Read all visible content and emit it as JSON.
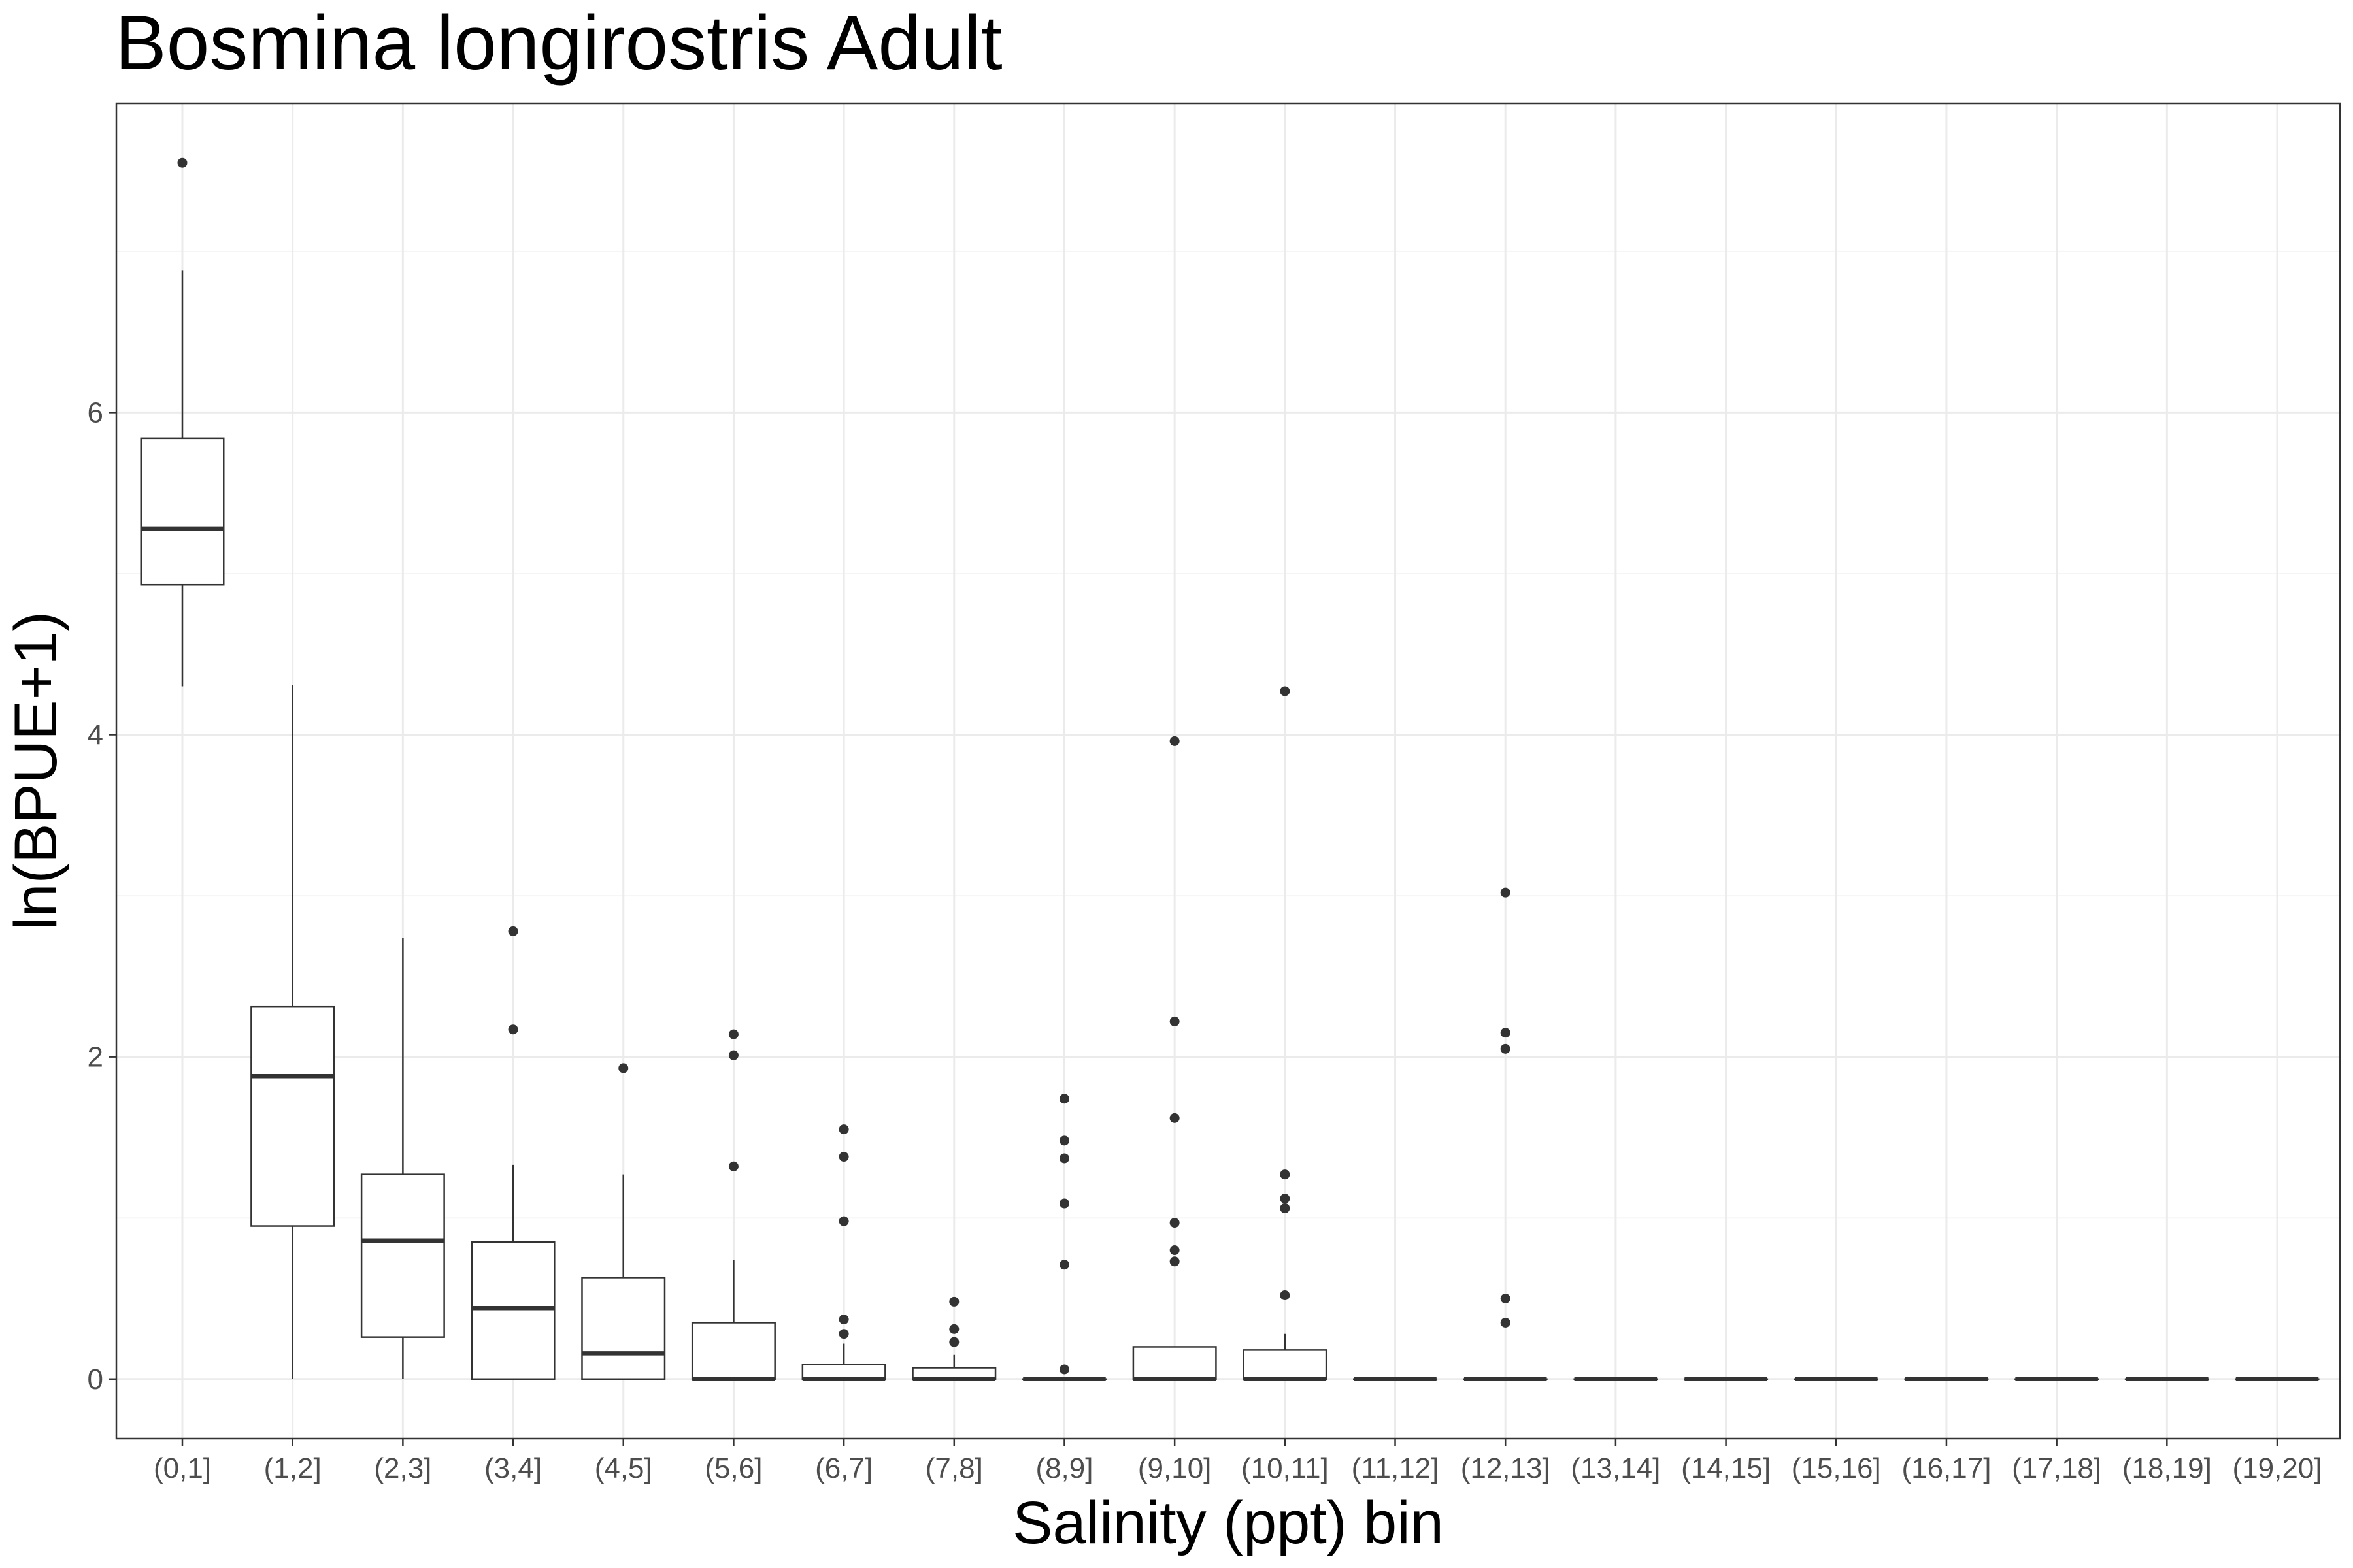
{
  "chart_data": {
    "type": "box",
    "title": "Bosmina longirostris Adult",
    "xlabel": "Salinity (ppt) bin",
    "ylabel": "ln(BPUE+1)",
    "ylim": [
      -0.37,
      7.92
    ],
    "yticks": [
      0,
      2,
      4,
      6
    ],
    "grid": true,
    "legend": "none",
    "colors": {
      "box_stroke": "#333333",
      "box_fill": "#ffffff",
      "grid_major": "#ebebeb",
      "grid_minor": "#f5f5f5",
      "panel_border": "#333333",
      "tick_label": "#4d4d4d"
    },
    "categories": [
      "(0,1]",
      "(1,2]",
      "(2,3]",
      "(3,4]",
      "(4,5]",
      "(5,6]",
      "(6,7]",
      "(7,8]",
      "(8,9]",
      "(9,10]",
      "(10,11]",
      "(11,12]",
      "(12,13]",
      "(13,14]",
      "(14,15]",
      "(15,16]",
      "(16,17]",
      "(17,18]",
      "(18,19]",
      "(19,20]"
    ],
    "boxes": [
      {
        "category": "(0,1]",
        "whisker_low": 4.3,
        "q1": 4.93,
        "median": 5.28,
        "q3": 5.84,
        "whisker_high": 6.88,
        "outliers": [
          7.55
        ]
      },
      {
        "category": "(1,2]",
        "whisker_low": 0,
        "q1": 0.95,
        "median": 1.88,
        "q3": 2.31,
        "whisker_high": 4.31,
        "outliers": []
      },
      {
        "category": "(2,3]",
        "whisker_low": 0,
        "q1": 0.26,
        "median": 0.86,
        "q3": 1.27,
        "whisker_high": 2.74,
        "outliers": []
      },
      {
        "category": "(3,4]",
        "whisker_low": 0,
        "q1": 0,
        "median": 0.44,
        "q3": 0.85,
        "whisker_high": 1.33,
        "outliers": [
          2.78,
          2.17
        ]
      },
      {
        "category": "(4,5]",
        "whisker_low": 0,
        "q1": 0,
        "median": 0.16,
        "q3": 0.63,
        "whisker_high": 1.27,
        "outliers": [
          1.93
        ]
      },
      {
        "category": "(5,6]",
        "whisker_low": 0,
        "q1": 0,
        "median": 0,
        "q3": 0.35,
        "whisker_high": 0.74,
        "outliers": [
          2.14,
          2.01,
          1.32
        ]
      },
      {
        "category": "(6,7]",
        "whisker_low": 0,
        "q1": 0,
        "median": 0,
        "q3": 0.09,
        "whisker_high": 0.22,
        "outliers": [
          1.55,
          1.38,
          0.98,
          0.37,
          0.28
        ]
      },
      {
        "category": "(7,8]",
        "whisker_low": 0,
        "q1": 0,
        "median": 0,
        "q3": 0.07,
        "whisker_high": 0.15,
        "outliers": [
          0.48,
          0.31,
          0.23
        ]
      },
      {
        "category": "(8,9]",
        "whisker_low": 0,
        "q1": 0,
        "median": 0,
        "q3": 0,
        "whisker_high": 0,
        "outliers": [
          1.74,
          1.48,
          1.37,
          1.09,
          0.71,
          0.06
        ]
      },
      {
        "category": "(9,10]",
        "whisker_low": 0,
        "q1": 0,
        "median": 0,
        "q3": 0.2,
        "whisker_high": 0.2,
        "outliers": [
          3.96,
          2.22,
          1.62,
          0.97,
          0.8,
          0.73
        ]
      },
      {
        "category": "(10,11]",
        "whisker_low": 0,
        "q1": 0,
        "median": 0,
        "q3": 0.18,
        "whisker_high": 0.28,
        "outliers": [
          4.27,
          1.27,
          1.12,
          1.06,
          0.52
        ]
      },
      {
        "category": "(11,12]",
        "whisker_low": 0,
        "q1": 0,
        "median": 0,
        "q3": 0,
        "whisker_high": 0,
        "outliers": []
      },
      {
        "category": "(12,13]",
        "whisker_low": 0,
        "q1": 0,
        "median": 0,
        "q3": 0,
        "whisker_high": 0,
        "outliers": [
          3.02,
          2.15,
          2.05,
          0.5,
          0.35
        ]
      },
      {
        "category": "(13,14]",
        "whisker_low": 0,
        "q1": 0,
        "median": 0,
        "q3": 0,
        "whisker_high": 0,
        "outliers": []
      },
      {
        "category": "(14,15]",
        "whisker_low": 0,
        "q1": 0,
        "median": 0,
        "q3": 0,
        "whisker_high": 0,
        "outliers": []
      },
      {
        "category": "(15,16]",
        "whisker_low": 0,
        "q1": 0,
        "median": 0,
        "q3": 0,
        "whisker_high": 0,
        "outliers": []
      },
      {
        "category": "(16,17]",
        "whisker_low": 0,
        "q1": 0,
        "median": 0,
        "q3": 0,
        "whisker_high": 0,
        "outliers": []
      },
      {
        "category": "(17,18]",
        "whisker_low": 0,
        "q1": 0,
        "median": 0,
        "q3": 0,
        "whisker_high": 0,
        "outliers": []
      },
      {
        "category": "(18,19]",
        "whisker_low": 0,
        "q1": 0,
        "median": 0,
        "q3": 0,
        "whisker_high": 0,
        "outliers": []
      },
      {
        "category": "(19,20]",
        "whisker_low": 0,
        "q1": 0,
        "median": 0,
        "q3": 0,
        "whisker_high": 0,
        "outliers": []
      }
    ]
  }
}
